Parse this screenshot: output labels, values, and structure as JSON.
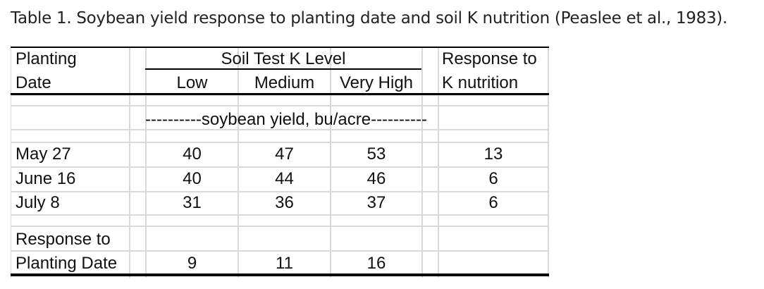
{
  "caption": "Table 1. Soybean yield response to planting date and soil K nutrition (Peaslee et al., 1983).",
  "header": {
    "planting_line1": "Planting",
    "planting_line2": "Date",
    "group_label": "Soil Test K Level",
    "col_low": "Low",
    "col_medium": "Medium",
    "col_very_high": "Very High",
    "response_line1": "Response to",
    "response_line2": "K nutrition"
  },
  "units_row": "----------soybean yield, bu/acre----------",
  "rows": [
    {
      "date": "May 27",
      "low": "40",
      "medium": "47",
      "very_high": "53",
      "response": "13"
    },
    {
      "date": "June 16",
      "low": "40",
      "medium": "44",
      "very_high": "46",
      "response": "6"
    },
    {
      "date": "July 8",
      "low": "31",
      "medium": "36",
      "very_high": "37",
      "response": "6"
    }
  ],
  "footer": {
    "label_line1": "Response to",
    "label_line2": "Planting Date",
    "low": "9",
    "medium": "11",
    "very_high": "16"
  }
}
